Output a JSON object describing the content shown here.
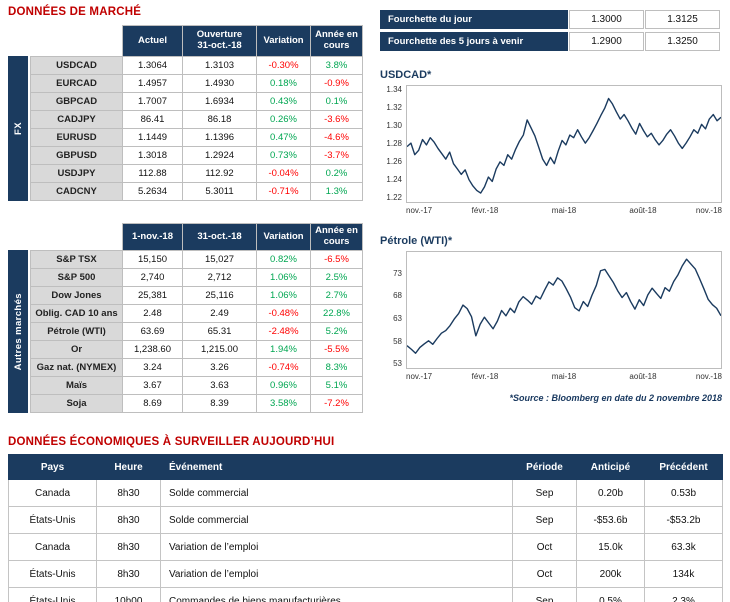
{
  "colors": {
    "navy": "#1B3B5F",
    "title_red": "#C00000",
    "positive": "#00A651",
    "negative": "#FF0000",
    "label_gray": "#D9D9D9",
    "border_gray": "#BEBEBE"
  },
  "market_section": {
    "title": "DONNÉES DE MARCHÉ"
  },
  "fx_table": {
    "group_label": "FX",
    "col_actuel": "Actuel",
    "col_ouverture_l1": "Ouverture",
    "col_ouverture_l2": "31-oct.-18",
    "col_variation": "Variation",
    "col_ytd": "Année en cours",
    "rows": [
      {
        "label": "USDCAD",
        "v1": "1.3064",
        "v2": "1.3103",
        "var": "-0.30%",
        "ytd": "3.8%"
      },
      {
        "label": "EURCAD",
        "v1": "1.4957",
        "v2": "1.4930",
        "var": "0.18%",
        "ytd": "-0.9%"
      },
      {
        "label": "GBPCAD",
        "v1": "1.7007",
        "v2": "1.6934",
        "var": "0.43%",
        "ytd": "0.1%"
      },
      {
        "label": "CADJPY",
        "v1": "86.41",
        "v2": "86.18",
        "var": "0.26%",
        "ytd": "-3.6%"
      },
      {
        "label": "EURUSD",
        "v1": "1.1449",
        "v2": "1.1396",
        "var": "0.47%",
        "ytd": "-4.6%"
      },
      {
        "label": "GBPUSD",
        "v1": "1.3018",
        "v2": "1.2924",
        "var": "0.73%",
        "ytd": "-3.7%"
      },
      {
        "label": "USDJPY",
        "v1": "112.88",
        "v2": "112.92",
        "var": "-0.04%",
        "ytd": "0.2%"
      },
      {
        "label": "CADCNY",
        "v1": "5.2634",
        "v2": "5.3011",
        "var": "-0.71%",
        "ytd": "1.3%"
      }
    ]
  },
  "markets_table": {
    "group_label": "Autres marchés",
    "col_date1": "1-nov.-18",
    "col_date2": "31-oct.-18",
    "col_variation": "Variation",
    "col_ytd": "Année en cours",
    "rows": [
      {
        "label": "S&P TSX",
        "v1": "15,150",
        "v2": "15,027",
        "var": "0.82%",
        "ytd": "-6.5%"
      },
      {
        "label": "S&P 500",
        "v1": "2,740",
        "v2": "2,712",
        "var": "1.06%",
        "ytd": "2.5%"
      },
      {
        "label": "Dow Jones",
        "v1": "25,381",
        "v2": "25,116",
        "var": "1.06%",
        "ytd": "2.7%"
      },
      {
        "label": "Oblig. CAD 10 ans",
        "v1": "2.48",
        "v2": "2.49",
        "var": "-0.48%",
        "ytd": "22.8%"
      },
      {
        "label": "Pétrole (WTI)",
        "v1": "63.69",
        "v2": "65.31",
        "var": "-2.48%",
        "ytd": "5.2%"
      },
      {
        "label": "Or",
        "v1": "1,238.60",
        "v2": "1,215.00",
        "var": "1.94%",
        "ytd": "-5.5%"
      },
      {
        "label": "Gaz nat. (NYMEX)",
        "v1": "3.24",
        "v2": "3.26",
        "var": "-0.74%",
        "ytd": "8.3%"
      },
      {
        "label": "Maïs",
        "v1": "3.67",
        "v2": "3.63",
        "var": "0.96%",
        "ytd": "5.1%"
      },
      {
        "label": "Soja",
        "v1": "8.69",
        "v2": "8.39",
        "var": "3.58%",
        "ytd": "-7.2%"
      }
    ]
  },
  "ranges": {
    "rows": [
      {
        "label": "Fourchette du jour",
        "low": "1.3000",
        "high": "1.3125"
      },
      {
        "label": "Fourchette des 5 jours à venir",
        "low": "1.2900",
        "high": "1.3250"
      }
    ]
  },
  "chart_data": [
    {
      "type": "line",
      "title": "USDCAD*",
      "xlabel": "",
      "ylabel": "",
      "line_color": "#1B3B5F",
      "ylim": [
        1.215,
        1.345
      ],
      "yticks": [
        1.22,
        1.24,
        1.26,
        1.28,
        1.3,
        1.32,
        1.34
      ],
      "ytick_labels": [
        "1.22",
        "1.24",
        "1.26",
        "1.28",
        "1.30",
        "1.32",
        "1.34"
      ],
      "xtick_labels": [
        "nov.-17",
        "févr.-18",
        "mai-18",
        "août-18",
        "nov.-18"
      ],
      "xtick_pos": [
        0,
        0.25,
        0.5,
        0.75,
        1
      ],
      "grid": false,
      "legend": "none",
      "values": [
        1.277,
        1.281,
        1.268,
        1.273,
        1.285,
        1.279,
        1.287,
        1.282,
        1.275,
        1.269,
        1.263,
        1.271,
        1.258,
        1.252,
        1.246,
        1.251,
        1.24,
        1.233,
        1.228,
        1.225,
        1.232,
        1.243,
        1.238,
        1.252,
        1.26,
        1.256,
        1.268,
        1.263,
        1.274,
        1.283,
        1.29,
        1.307,
        1.298,
        1.289,
        1.276,
        1.263,
        1.256,
        1.265,
        1.258,
        1.272,
        1.284,
        1.279,
        1.29,
        1.287,
        1.296,
        1.288,
        1.281,
        1.287,
        1.295,
        1.303,
        1.312,
        1.32,
        1.331,
        1.325,
        1.316,
        1.308,
        1.313,
        1.306,
        1.298,
        1.291,
        1.303,
        1.295,
        1.288,
        1.292,
        1.285,
        1.279,
        1.284,
        1.291,
        1.296,
        1.289,
        1.281,
        1.275,
        1.281,
        1.288,
        1.296,
        1.292,
        1.302,
        1.297,
        1.308,
        1.313,
        1.306,
        1.31
      ]
    },
    {
      "type": "line",
      "title": "Pétrole (WTI)*",
      "xlabel": "",
      "ylabel": "",
      "line_color": "#1B3B5F",
      "ylim": [
        52,
        78
      ],
      "yticks": [
        53,
        58,
        63,
        68,
        73
      ],
      "ytick_labels": [
        "53",
        "58",
        "63",
        "68",
        "73"
      ],
      "xtick_labels": [
        "nov.-17",
        "févr.-18",
        "mai-18",
        "août-18",
        "nov.-18"
      ],
      "xtick_pos": [
        0,
        0.25,
        0.5,
        0.75,
        1
      ],
      "grid": false,
      "legend": "none",
      "values": [
        57.0,
        56.2,
        55.3,
        56.6,
        57.4,
        58.1,
        57.3,
        58.6,
        59.8,
        60.4,
        61.5,
        63.0,
        64.2,
        66.1,
        65.3,
        63.5,
        59.2,
        61.8,
        63.4,
        62.1,
        60.8,
        62.5,
        64.9,
        63.7,
        65.4,
        64.4,
        66.8,
        68.0,
        67.2,
        66.3,
        68.1,
        67.5,
        69.5,
        71.3,
        70.6,
        72.2,
        71.5,
        69.8,
        67.9,
        65.5,
        64.8,
        66.9,
        65.8,
        68.3,
        70.5,
        73.8,
        74.1,
        72.6,
        71.1,
        69.3,
        67.8,
        68.9,
        66.9,
        65.2,
        67.3,
        66.0,
        68.4,
        69.9,
        68.7,
        67.6,
        70.0,
        69.2,
        71.4,
        72.9,
        74.9,
        76.4,
        75.3,
        74.2,
        72.1,
        69.8,
        67.4,
        66.2,
        65.4,
        63.7
      ]
    }
  ],
  "source_note": "*Source : Bloomberg en date du 2 novembre 2018",
  "econ_section": {
    "title": "DONNÉES ÉCONOMIQUES À SURVEILLER AUJOURD’HUI"
  },
  "econ_table": {
    "headers": {
      "pays": "Pays",
      "heure": "Heure",
      "evenement": "Événement",
      "periode": "Période",
      "anticipe": "Anticipé",
      "precedent": "Précédent"
    },
    "rows": [
      {
        "pays": "Canada",
        "heure": "8h30",
        "evenement": "Solde commercial",
        "periode": "Sep",
        "anticipe": "0.20b",
        "precedent": "0.53b"
      },
      {
        "pays": "États-Unis",
        "heure": "8h30",
        "evenement": "Solde commercial",
        "periode": "Sep",
        "anticipe": "-$53.6b",
        "precedent": "-$53.2b"
      },
      {
        "pays": "Canada",
        "heure": "8h30",
        "evenement": "Variation de l’emploi",
        "periode": "Oct",
        "anticipe": "15.0k",
        "precedent": "63.3k"
      },
      {
        "pays": "États-Unis",
        "heure": "8h30",
        "evenement": "Variation de l’emploi",
        "periode": "Oct",
        "anticipe": "200k",
        "precedent": "134k"
      },
      {
        "pays": "États-Unis",
        "heure": "10h00",
        "evenement": "Commandes de biens manufacturières",
        "periode": "Sep",
        "anticipe": "0.5%",
        "precedent": "2.3%"
      }
    ]
  }
}
